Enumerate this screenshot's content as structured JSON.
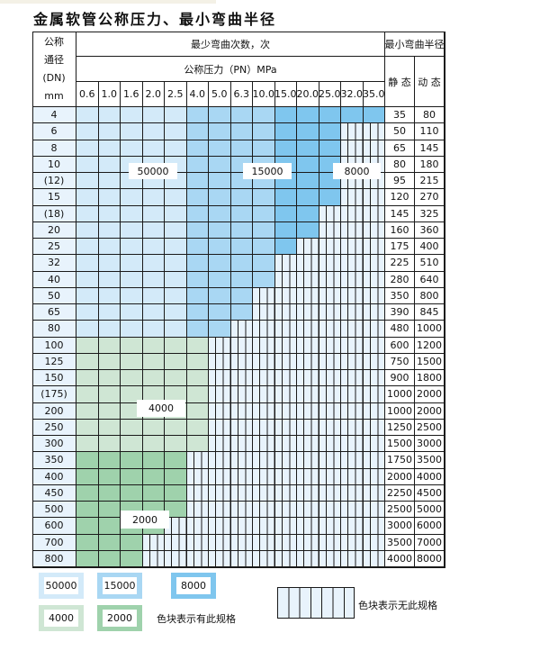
{
  "title": "金属软管公称压力、最小弯曲半径",
  "header": {
    "dn_lines": [
      "公称",
      "通径",
      "(DN)",
      "mm"
    ],
    "cycles_label": "最少弯曲次数，次",
    "pressure_label": "公称压力（PN）MPa",
    "radius_label": "最小弯曲半径",
    "static_label": "静 态",
    "dynamic_label": "动 态",
    "pressures": [
      "0.6",
      "1.0",
      "1.6",
      "2.0",
      "2.5",
      "4.0",
      "5.0",
      "6.3",
      "10.0",
      "15.0",
      "20.0",
      "25.0",
      "32.0",
      "35.0"
    ]
  },
  "colors": {
    "blue_50000": "#d3eaf9",
    "blue_15000": "#a9d7f3",
    "blue_8000": "#7fc6ee",
    "green_4000": "#cfe6d4",
    "green_2000": "#9fd2ac",
    "unavailable": "#e8f3fc"
  },
  "zone_labels": {
    "blue_50000": "50000",
    "blue_15000": "15000",
    "blue_8000": "8000",
    "green_4000": "4000",
    "green_2000": "2000"
  },
  "rows": [
    {
      "dn": "4",
      "available": 14,
      "zone": "blue",
      "static": "35",
      "dynamic": "80"
    },
    {
      "dn": "6",
      "available": 12,
      "zone": "blue",
      "static": "50",
      "dynamic": "110"
    },
    {
      "dn": "8",
      "available": 12,
      "zone": "blue",
      "static": "65",
      "dynamic": "145"
    },
    {
      "dn": "10",
      "available": 12,
      "zone": "blue",
      "static": "80",
      "dynamic": "180"
    },
    {
      "dn": "(12)",
      "available": 12,
      "zone": "blue",
      "static": "95",
      "dynamic": "215"
    },
    {
      "dn": "15",
      "available": 12,
      "zone": "blue",
      "static": "120",
      "dynamic": "270"
    },
    {
      "dn": "(18)",
      "available": 11,
      "zone": "blue",
      "static": "145",
      "dynamic": "325"
    },
    {
      "dn": "20",
      "available": 11,
      "zone": "blue",
      "static": "160",
      "dynamic": "360"
    },
    {
      "dn": "25",
      "available": 10,
      "zone": "blue",
      "static": "175",
      "dynamic": "400"
    },
    {
      "dn": "32",
      "available": 9,
      "zone": "blue",
      "static": "225",
      "dynamic": "510"
    },
    {
      "dn": "40",
      "available": 9,
      "zone": "blue",
      "static": "280",
      "dynamic": "640"
    },
    {
      "dn": "50",
      "available": 8,
      "zone": "blue",
      "static": "350",
      "dynamic": "800"
    },
    {
      "dn": "65",
      "available": 8,
      "zone": "blue",
      "static": "390",
      "dynamic": "845"
    },
    {
      "dn": "80",
      "available": 7,
      "zone": "blue",
      "static": "480",
      "dynamic": "1000"
    },
    {
      "dn": "100",
      "available": 6,
      "zone": "green_4000",
      "static": "600",
      "dynamic": "1200"
    },
    {
      "dn": "125",
      "available": 6,
      "zone": "green_4000",
      "static": "750",
      "dynamic": "1500"
    },
    {
      "dn": "150",
      "available": 6,
      "zone": "green_4000",
      "static": "900",
      "dynamic": "1800"
    },
    {
      "dn": "(175)",
      "available": 6,
      "zone": "green_4000",
      "static": "1000",
      "dynamic": "2000"
    },
    {
      "dn": "200",
      "available": 6,
      "zone": "green_4000",
      "static": "1000",
      "dynamic": "2000"
    },
    {
      "dn": "250",
      "available": 6,
      "zone": "green_4000",
      "static": "1250",
      "dynamic": "2500"
    },
    {
      "dn": "300",
      "available": 6,
      "zone": "green_4000",
      "static": "1500",
      "dynamic": "3000"
    },
    {
      "dn": "350",
      "available": 5,
      "zone": "green_2000",
      "static": "1750",
      "dynamic": "3500"
    },
    {
      "dn": "400",
      "available": 5,
      "zone": "green_2000",
      "static": "2000",
      "dynamic": "4000"
    },
    {
      "dn": "450",
      "available": 5,
      "zone": "green_2000",
      "static": "2250",
      "dynamic": "4500"
    },
    {
      "dn": "500",
      "available": 5,
      "zone": "green_2000",
      "static": "2500",
      "dynamic": "5000"
    },
    {
      "dn": "600",
      "available": 4,
      "zone": "green_2000",
      "static": "3000",
      "dynamic": "6000"
    },
    {
      "dn": "700",
      "available": 3,
      "zone": "green_2000",
      "static": "3500",
      "dynamic": "7000"
    },
    {
      "dn": "800",
      "available": 3,
      "zone": "green_2000",
      "static": "4000",
      "dynamic": "8000"
    }
  ],
  "legend": {
    "available_text": "色块表示有此规格",
    "unavailable_text": "色块表示无此规格"
  }
}
